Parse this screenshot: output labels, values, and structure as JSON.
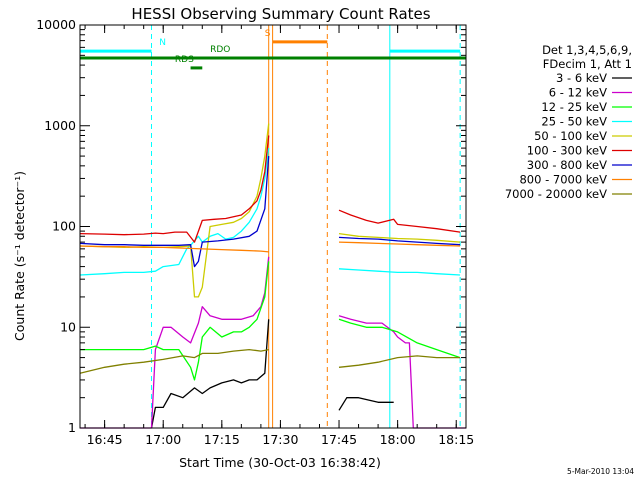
{
  "chart_data": {
    "type": "line",
    "title": "HESSI Observing Summary Count Rates",
    "xlabel": "Start Time (30-Oct-03 16:38:42)",
    "ylabel": "Count Rate (s⁻¹ detector⁻¹)",
    "y_scale": "log",
    "ylim": [
      1,
      10000
    ],
    "xlim": [
      "16:38:42",
      "18:17:30"
    ],
    "x_ticks": [
      "16:45",
      "17:00",
      "17:15",
      "17:30",
      "17:45",
      "18:00",
      "18:15"
    ],
    "y_ticks": [
      "1",
      "10",
      "100",
      "1000",
      "10000"
    ],
    "grid": false,
    "legend_position": "right",
    "legend_header": [
      "Det 1,3,4,5,6,9,",
      "FDecim 1, Att 1"
    ],
    "footer_date": "5-Mar-2010 13:04",
    "series": [
      {
        "name": "3 - 6 keV",
        "color": "#000000",
        "points": [
          [
            "16:57",
            1
          ],
          [
            "16:58",
            1.6
          ],
          [
            "17:00",
            1.6
          ],
          [
            "17:02",
            2.2
          ],
          [
            "17:05",
            2
          ],
          [
            "17:08",
            2.5
          ],
          [
            "17:10",
            2.2
          ],
          [
            "17:12",
            2.5
          ],
          [
            "17:15",
            2.8
          ],
          [
            "17:18",
            3
          ],
          [
            "17:20",
            2.8
          ],
          [
            "17:22",
            3
          ],
          [
            "17:24",
            3
          ],
          [
            "17:26",
            3.5
          ],
          [
            "17:27",
            12
          ],
          null,
          [
            "17:45",
            1.5
          ],
          [
            "17:47",
            2
          ],
          [
            "17:50",
            2
          ],
          [
            "17:55",
            1.8
          ],
          [
            "17:59",
            1.8
          ]
        ]
      },
      {
        "name": "6 - 12 keV",
        "color": "#cc00cc",
        "points": [
          [
            "16:38:42",
            1
          ],
          [
            "16:57",
            1
          ],
          [
            "16:58",
            6
          ],
          [
            "17:00",
            10
          ],
          [
            "17:02",
            10
          ],
          [
            "17:05",
            8
          ],
          [
            "17:07",
            7
          ],
          [
            "17:09",
            11
          ],
          [
            "17:10",
            16
          ],
          [
            "17:12",
            13
          ],
          [
            "17:15",
            12
          ],
          [
            "17:18",
            12
          ],
          [
            "17:20",
            12
          ],
          [
            "17:23",
            13
          ],
          [
            "17:25",
            16
          ],
          [
            "17:26",
            22
          ],
          [
            "17:27",
            50
          ],
          null,
          [
            "17:45",
            13
          ],
          [
            "17:48",
            12
          ],
          [
            "17:52",
            11
          ],
          [
            "17:56",
            11
          ],
          [
            "17:59",
            9
          ],
          [
            "18:00",
            8
          ],
          [
            "18:02",
            7
          ],
          [
            "18:03",
            7
          ],
          [
            "18:04",
            1
          ],
          [
            "18:17:30",
            1
          ]
        ]
      },
      {
        "name": "12 - 25 keV",
        "color": "#00ff00",
        "points": [
          [
            "16:38:42",
            6
          ],
          [
            "16:45",
            6
          ],
          [
            "16:50",
            6
          ],
          [
            "16:55",
            6
          ],
          [
            "16:58",
            6.5
          ],
          [
            "17:00",
            6
          ],
          [
            "17:04",
            6
          ],
          [
            "17:07",
            4
          ],
          [
            "17:08",
            3
          ],
          [
            "17:09",
            4.5
          ],
          [
            "17:10",
            8
          ],
          [
            "17:12",
            10
          ],
          [
            "17:15",
            8
          ],
          [
            "17:18",
            9
          ],
          [
            "17:20",
            9
          ],
          [
            "17:22",
            10
          ],
          [
            "17:24",
            12
          ],
          [
            "17:26",
            20
          ],
          [
            "17:27",
            45
          ],
          null,
          [
            "17:45",
            12
          ],
          [
            "17:48",
            11
          ],
          [
            "17:52",
            10
          ],
          [
            "17:56",
            10
          ],
          [
            "18:00",
            9
          ],
          [
            "18:05",
            7
          ],
          [
            "18:10",
            6
          ],
          [
            "18:16",
            5
          ]
        ]
      },
      {
        "name": "25 - 50 keV",
        "color": "#00ffff",
        "points": [
          [
            "16:38:42",
            33
          ],
          [
            "16:45",
            34
          ],
          [
            "16:50",
            35
          ],
          [
            "16:55",
            35
          ],
          [
            "16:58",
            36
          ],
          [
            "17:00",
            40
          ],
          [
            "17:04",
            42
          ],
          [
            "17:06",
            60
          ],
          [
            "17:07",
            65
          ],
          [
            "17:09",
            80
          ],
          [
            "17:10",
            70
          ],
          [
            "17:12",
            80
          ],
          [
            "17:14",
            85
          ],
          [
            "17:16",
            75
          ],
          [
            "17:18",
            78
          ],
          [
            "17:20",
            90
          ],
          [
            "17:22",
            110
          ],
          [
            "17:24",
            150
          ],
          [
            "17:25",
            200
          ],
          [
            "17:26",
            300
          ],
          [
            "17:27",
            600
          ],
          null,
          [
            "17:45",
            38
          ],
          [
            "17:50",
            37
          ],
          [
            "17:55",
            36
          ],
          [
            "18:00",
            35
          ],
          [
            "18:05",
            35
          ],
          [
            "18:10",
            34
          ],
          [
            "18:16",
            33
          ]
        ]
      },
      {
        "name": "50 - 100 keV",
        "color": "#cccc00",
        "points": [
          [
            "16:38:42",
            64
          ],
          [
            "16:45",
            63
          ],
          [
            "16:50",
            62
          ],
          [
            "16:55",
            63
          ],
          [
            "17:00",
            62
          ],
          [
            "17:04",
            63
          ],
          [
            "17:07",
            64
          ],
          [
            "17:08",
            20
          ],
          [
            "17:09",
            20
          ],
          [
            "17:10",
            25
          ],
          [
            "17:12",
            100
          ],
          [
            "17:15",
            105
          ],
          [
            "17:18",
            110
          ],
          [
            "17:20",
            120
          ],
          [
            "17:22",
            140
          ],
          [
            "17:24",
            200
          ],
          [
            "17:25",
            300
          ],
          [
            "17:26",
            500
          ],
          [
            "17:27",
            1050
          ],
          null,
          [
            "17:45",
            85
          ],
          [
            "17:50",
            80
          ],
          [
            "17:55",
            78
          ],
          [
            "18:00",
            76
          ],
          [
            "18:05",
            75
          ],
          [
            "18:10",
            73
          ],
          [
            "18:16",
            70
          ]
        ]
      },
      {
        "name": "100 - 300 keV",
        "color": "#dd0000",
        "points": [
          [
            "16:38:42",
            85
          ],
          [
            "16:45",
            84
          ],
          [
            "16:50",
            83
          ],
          [
            "16:55",
            84
          ],
          [
            "16:58",
            86
          ],
          [
            "17:00",
            85
          ],
          [
            "17:03",
            88
          ],
          [
            "17:06",
            88
          ],
          [
            "17:08",
            70
          ],
          [
            "17:10",
            115
          ],
          [
            "17:13",
            118
          ],
          [
            "17:16",
            120
          ],
          [
            "17:18",
            125
          ],
          [
            "17:20",
            130
          ],
          [
            "17:22",
            150
          ],
          [
            "17:24",
            180
          ],
          [
            "17:25",
            230
          ],
          [
            "17:26",
            350
          ],
          [
            "17:27",
            800
          ],
          null,
          [
            "17:45",
            145
          ],
          [
            "17:48",
            130
          ],
          [
            "17:52",
            115
          ],
          [
            "17:55",
            108
          ],
          [
            "17:59",
            118
          ],
          [
            "18:00",
            105
          ],
          [
            "18:05",
            100
          ],
          [
            "18:10",
            95
          ],
          [
            "18:16",
            88
          ]
        ]
      },
      {
        "name": "300 - 800 keV",
        "color": "#0000cc",
        "points": [
          [
            "16:38:42",
            68
          ],
          [
            "16:45",
            66
          ],
          [
            "16:50",
            66
          ],
          [
            "16:55",
            65
          ],
          [
            "17:00",
            65
          ],
          [
            "17:04",
            65
          ],
          [
            "17:07",
            66
          ],
          [
            "17:08",
            40
          ],
          [
            "17:09",
            45
          ],
          [
            "17:10",
            70
          ],
          [
            "17:14",
            72
          ],
          [
            "17:18",
            75
          ],
          [
            "17:22",
            80
          ],
          [
            "17:24",
            90
          ],
          [
            "17:26",
            150
          ],
          [
            "17:27",
            500
          ],
          null,
          [
            "17:45",
            78
          ],
          [
            "17:50",
            76
          ],
          [
            "17:55",
            75
          ],
          [
            "18:00",
            72
          ],
          [
            "18:05",
            70
          ],
          [
            "18:10",
            68
          ],
          [
            "18:16",
            66
          ]
        ]
      },
      {
        "name": "800 - 7000 keV",
        "color": "#ff8000",
        "points": [
          [
            "16:38:42",
            64
          ],
          [
            "16:45",
            63
          ],
          [
            "16:50",
            63
          ],
          [
            "16:55",
            62
          ],
          [
            "17:00",
            62
          ],
          [
            "17:05",
            61
          ],
          [
            "17:10",
            60
          ],
          [
            "17:15",
            59
          ],
          [
            "17:20",
            58
          ],
          [
            "17:25",
            57
          ],
          [
            "17:27",
            56
          ],
          null,
          [
            "17:45",
            70
          ],
          [
            "17:50",
            69
          ],
          [
            "17:55",
            68
          ],
          [
            "18:00",
            67
          ],
          [
            "18:05",
            66
          ],
          [
            "18:10",
            65
          ],
          [
            "18:16",
            64
          ]
        ]
      },
      {
        "name": "7000 - 20000 keV",
        "color": "#808000",
        "points": [
          [
            "16:38:42",
            3.5
          ],
          [
            "16:45",
            4
          ],
          [
            "16:50",
            4.3
          ],
          [
            "16:55",
            4.5
          ],
          [
            "17:00",
            4.8
          ],
          [
            "17:05",
            5.2
          ],
          [
            "17:08",
            5
          ],
          [
            "17:10",
            5.5
          ],
          [
            "17:14",
            5.5
          ],
          [
            "17:18",
            5.8
          ],
          [
            "17:22",
            6
          ],
          [
            "17:25",
            5.8
          ],
          [
            "17:27",
            6
          ],
          null,
          [
            "17:45",
            4
          ],
          [
            "17:50",
            4.2
          ],
          [
            "17:55",
            4.5
          ],
          [
            "18:00",
            5
          ],
          [
            "18:05",
            5.2
          ],
          [
            "18:10",
            5
          ],
          [
            "18:16",
            5
          ]
        ]
      }
    ],
    "state_lines": [
      {
        "label": "N",
        "color": "#00ffff",
        "value": 5500,
        "segments": [
          [
            "16:38:42",
            "16:57"
          ],
          [
            "17:58",
            "18:16"
          ]
        ],
        "label_at": "16:59"
      },
      {
        "label": "S",
        "color": "#ff8000",
        "value": 6800,
        "segments": [
          [
            "17:28",
            "17:42"
          ]
        ],
        "label_at": "17:26"
      },
      {
        "label": "",
        "color": "#008000",
        "value": 4700,
        "segments": [
          [
            "16:38:42",
            "18:17:30"
          ]
        ],
        "label_at": null
      },
      {
        "label": "RDO",
        "color": "#008000",
        "value": 4700,
        "segments": [],
        "label_at": "17:12"
      },
      {
        "label": "RDS",
        "color": "#008000",
        "value": 3750,
        "segments": [
          [
            "17:07",
            "17:10"
          ]
        ],
        "label_at": "17:03"
      }
    ],
    "vertical_markers": [
      {
        "time": "16:38:42",
        "color": "#00ffff",
        "style": "solid"
      },
      {
        "time": "16:57",
        "color": "#00ffff",
        "style": "dashed"
      },
      {
        "time": "17:27",
        "color": "#ff8000",
        "style": "solid"
      },
      {
        "time": "17:28",
        "color": "#ff8000",
        "style": "solid"
      },
      {
        "time": "17:42",
        "color": "#ff8000",
        "style": "dashed"
      },
      {
        "time": "17:58",
        "color": "#00ffff",
        "style": "solid"
      },
      {
        "time": "18:16",
        "color": "#00ffff",
        "style": "dashed"
      }
    ]
  }
}
